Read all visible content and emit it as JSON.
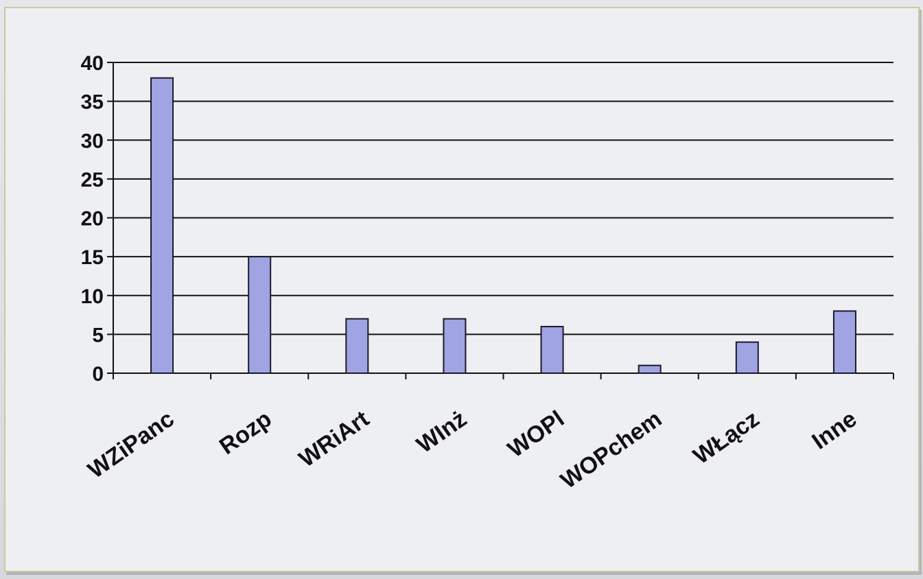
{
  "chart_data": {
    "type": "bar",
    "categories": [
      "WZiPanc",
      "Rozp",
      "WRiArt",
      "WInż",
      "WOPl",
      "WOPchem",
      "WŁącz",
      "Inne"
    ],
    "values": [
      38,
      15,
      7,
      7,
      6,
      1,
      4,
      8
    ],
    "yticks": [
      0,
      5,
      10,
      15,
      20,
      25,
      30,
      35,
      40
    ],
    "ylim": [
      0,
      40
    ],
    "grid": true,
    "legend": "none",
    "title": "",
    "xlabel": "",
    "ylabel": ""
  },
  "colors": {
    "bar_fill": "#a0a4e2",
    "bar_stroke": "#1a1a2a",
    "grid": "#111111",
    "axis": "#111111",
    "text": "#111111"
  }
}
